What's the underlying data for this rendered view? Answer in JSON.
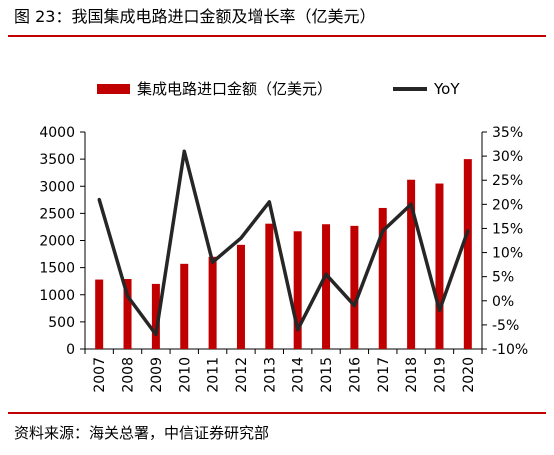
{
  "figure": {
    "title": "图 23：我国集成电路进口金额及增长率（亿美元）",
    "source": "资料来源：海关总署，中信证券研究部"
  },
  "colors": {
    "bar": "#c00000",
    "line": "#262626",
    "rule": "#c00000"
  },
  "chart_data": {
    "type": "bar",
    "categories": [
      "2007",
      "2008",
      "2009",
      "2010",
      "2011",
      "2012",
      "2013",
      "2014",
      "2015",
      "2016",
      "2017",
      "2018",
      "2019",
      "2020"
    ],
    "series": [
      {
        "name": "集成电路进口金额（亿美元）",
        "type": "bar",
        "axis": "left",
        "values": [
          1280,
          1290,
          1200,
          1570,
          1700,
          1920,
          2310,
          2170,
          2300,
          2270,
          2600,
          3120,
          3050,
          3500
        ]
      },
      {
        "name": "YoY",
        "type": "line",
        "axis": "right",
        "values": [
          21,
          1,
          -7,
          31,
          8,
          13,
          20.5,
          -6,
          5.5,
          -1,
          14.5,
          20,
          -2,
          14.5
        ]
      }
    ],
    "y_left": {
      "min": 0,
      "max": 4000,
      "step": 500,
      "ticks": [
        "0",
        "500",
        "1000",
        "1500",
        "2000",
        "2500",
        "3000",
        "3500",
        "4000"
      ]
    },
    "y_right": {
      "min": -10,
      "max": 35,
      "step": 5,
      "ticks": [
        "-10%",
        "-5%",
        "0%",
        "5%",
        "10%",
        "15%",
        "20%",
        "25%",
        "30%",
        "35%"
      ]
    },
    "legend": {
      "placement": "top"
    },
    "grid": false
  }
}
